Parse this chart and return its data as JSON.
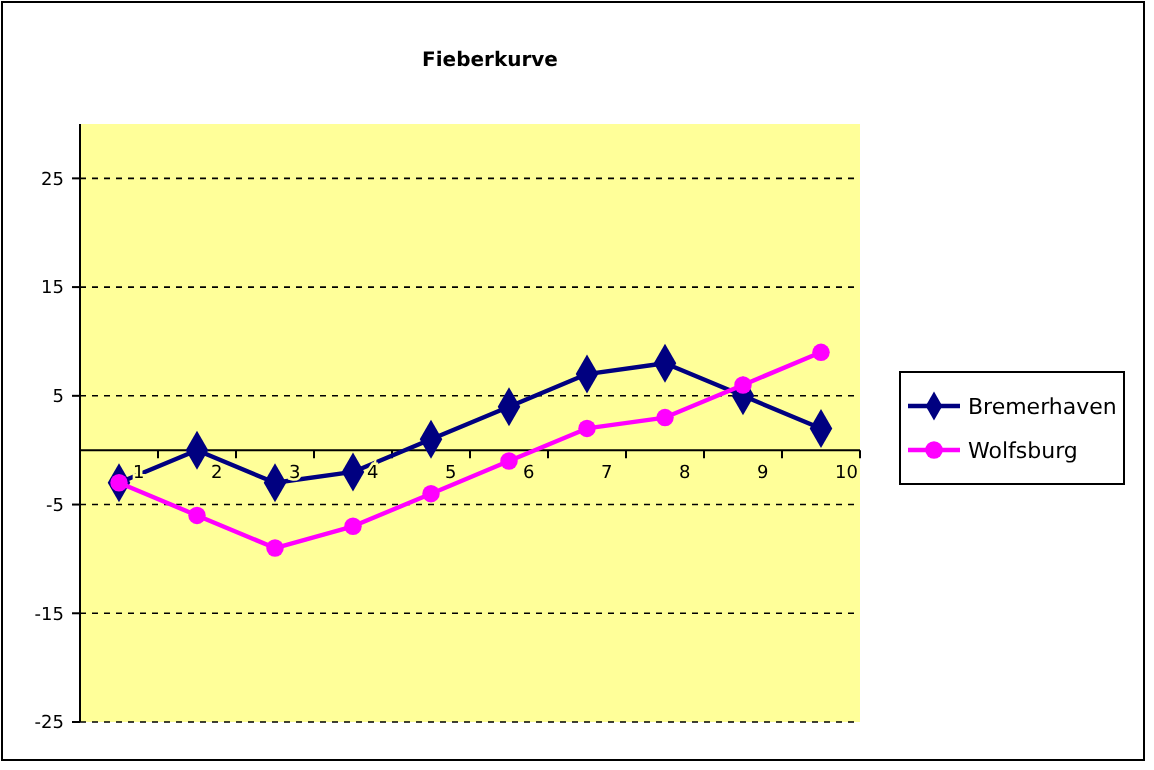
{
  "chart_data": {
    "type": "line",
    "title": "Fieberkurve",
    "categories": [
      "1",
      "2",
      "3",
      "4",
      "5",
      "6",
      "7",
      "8",
      "9",
      "10"
    ],
    "series": [
      {
        "name": "Bremerhaven",
        "color": "#000080",
        "marker": "diamond",
        "values": [
          -3,
          0,
          -3,
          -2,
          1,
          4,
          7,
          8,
          5,
          2
        ]
      },
      {
        "name": "Wolfsburg",
        "color": "#ff00ff",
        "marker": "circle",
        "values": [
          -3,
          -6,
          -9,
          -7,
          -4,
          -1,
          2,
          3,
          6,
          9
        ]
      }
    ],
    "ylim": [
      -25,
      30
    ],
    "yticks": [
      -25,
      -15,
      -5,
      5,
      15,
      25
    ],
    "grid": "y",
    "legend": "right"
  }
}
